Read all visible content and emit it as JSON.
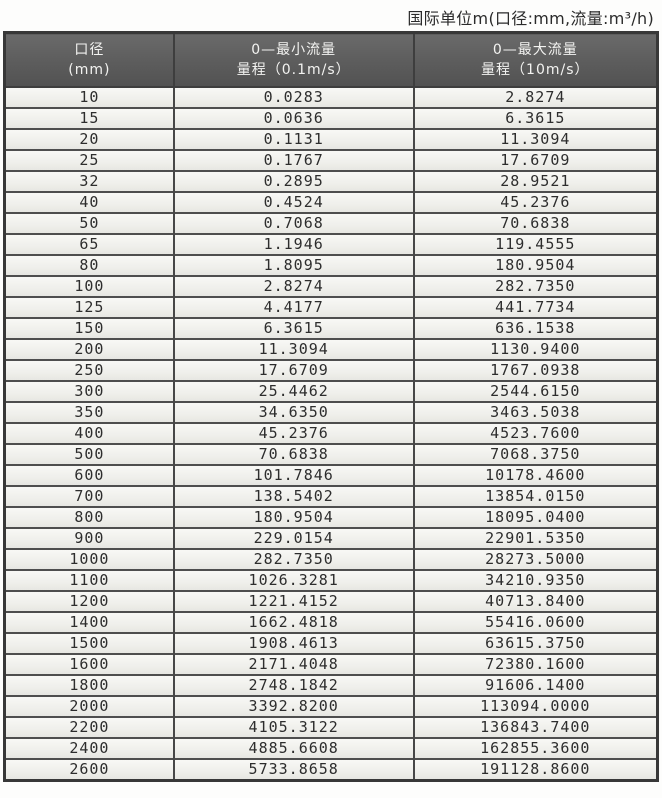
{
  "title": "国际单位m(口径:mm,流量:m³/h)",
  "colors": {
    "header_bg": "#5e5e5e",
    "header_text": "#f3f3f1",
    "row_bg": "#f1f1ee",
    "grid_border": "#474747",
    "cell_text": "#2d2d2d"
  },
  "table": {
    "headers": [
      {
        "line1": "口径",
        "line2": "(mm)"
      },
      {
        "line1": "0—最小流量",
        "line2": "量程（0.1m/s）"
      },
      {
        "line1": "0—最大流量",
        "line2": "量程（10m/s）"
      }
    ]
  },
  "chart_data": {
    "type": "table",
    "title": "国际单位m(口径:mm,流量:m³/h)",
    "columns": [
      "口径(mm)",
      "0—最小流量 量程（0.1m/s）",
      "0—最大流量 量程（10m/s）"
    ],
    "rows": [
      [
        "10",
        "0.0283",
        "2.8274"
      ],
      [
        "15",
        "0.0636",
        "6.3615"
      ],
      [
        "20",
        "0.1131",
        "11.3094"
      ],
      [
        "25",
        "0.1767",
        "17.6709"
      ],
      [
        "32",
        "0.2895",
        "28.9521"
      ],
      [
        "40",
        "0.4524",
        "45.2376"
      ],
      [
        "50",
        "0.7068",
        "70.6838"
      ],
      [
        "65",
        "1.1946",
        "119.4555"
      ],
      [
        "80",
        "1.8095",
        "180.9504"
      ],
      [
        "100",
        "2.8274",
        "282.7350"
      ],
      [
        "125",
        "4.4177",
        "441.7734"
      ],
      [
        "150",
        "6.3615",
        "636.1538"
      ],
      [
        "200",
        "11.3094",
        "1130.9400"
      ],
      [
        "250",
        "17.6709",
        "1767.0938"
      ],
      [
        "300",
        "25.4462",
        "2544.6150"
      ],
      [
        "350",
        "34.6350",
        "3463.5038"
      ],
      [
        "400",
        "45.2376",
        "4523.7600"
      ],
      [
        "500",
        "70.6838",
        "7068.3750"
      ],
      [
        "600",
        "101.7846",
        "10178.4600"
      ],
      [
        "700",
        "138.5402",
        "13854.0150"
      ],
      [
        "800",
        "180.9504",
        "18095.0400"
      ],
      [
        "900",
        "229.0154",
        "22901.5350"
      ],
      [
        "1000",
        "282.7350",
        "28273.5000"
      ],
      [
        "1100",
        "1026.3281",
        "34210.9350"
      ],
      [
        "1200",
        "1221.4152",
        "40713.8400"
      ],
      [
        "1400",
        "1662.4818",
        "55416.0600"
      ],
      [
        "1500",
        "1908.4613",
        "63615.3750"
      ],
      [
        "1600",
        "2171.4048",
        "72380.1600"
      ],
      [
        "1800",
        "2748.1842",
        "91606.1400"
      ],
      [
        "2000",
        "3392.8200",
        "113094.0000"
      ],
      [
        "2200",
        "4105.3122",
        "136843.7400"
      ],
      [
        "2400",
        "4885.6608",
        "162855.3600"
      ],
      [
        "2600",
        "5733.8658",
        "191128.8600"
      ]
    ]
  }
}
